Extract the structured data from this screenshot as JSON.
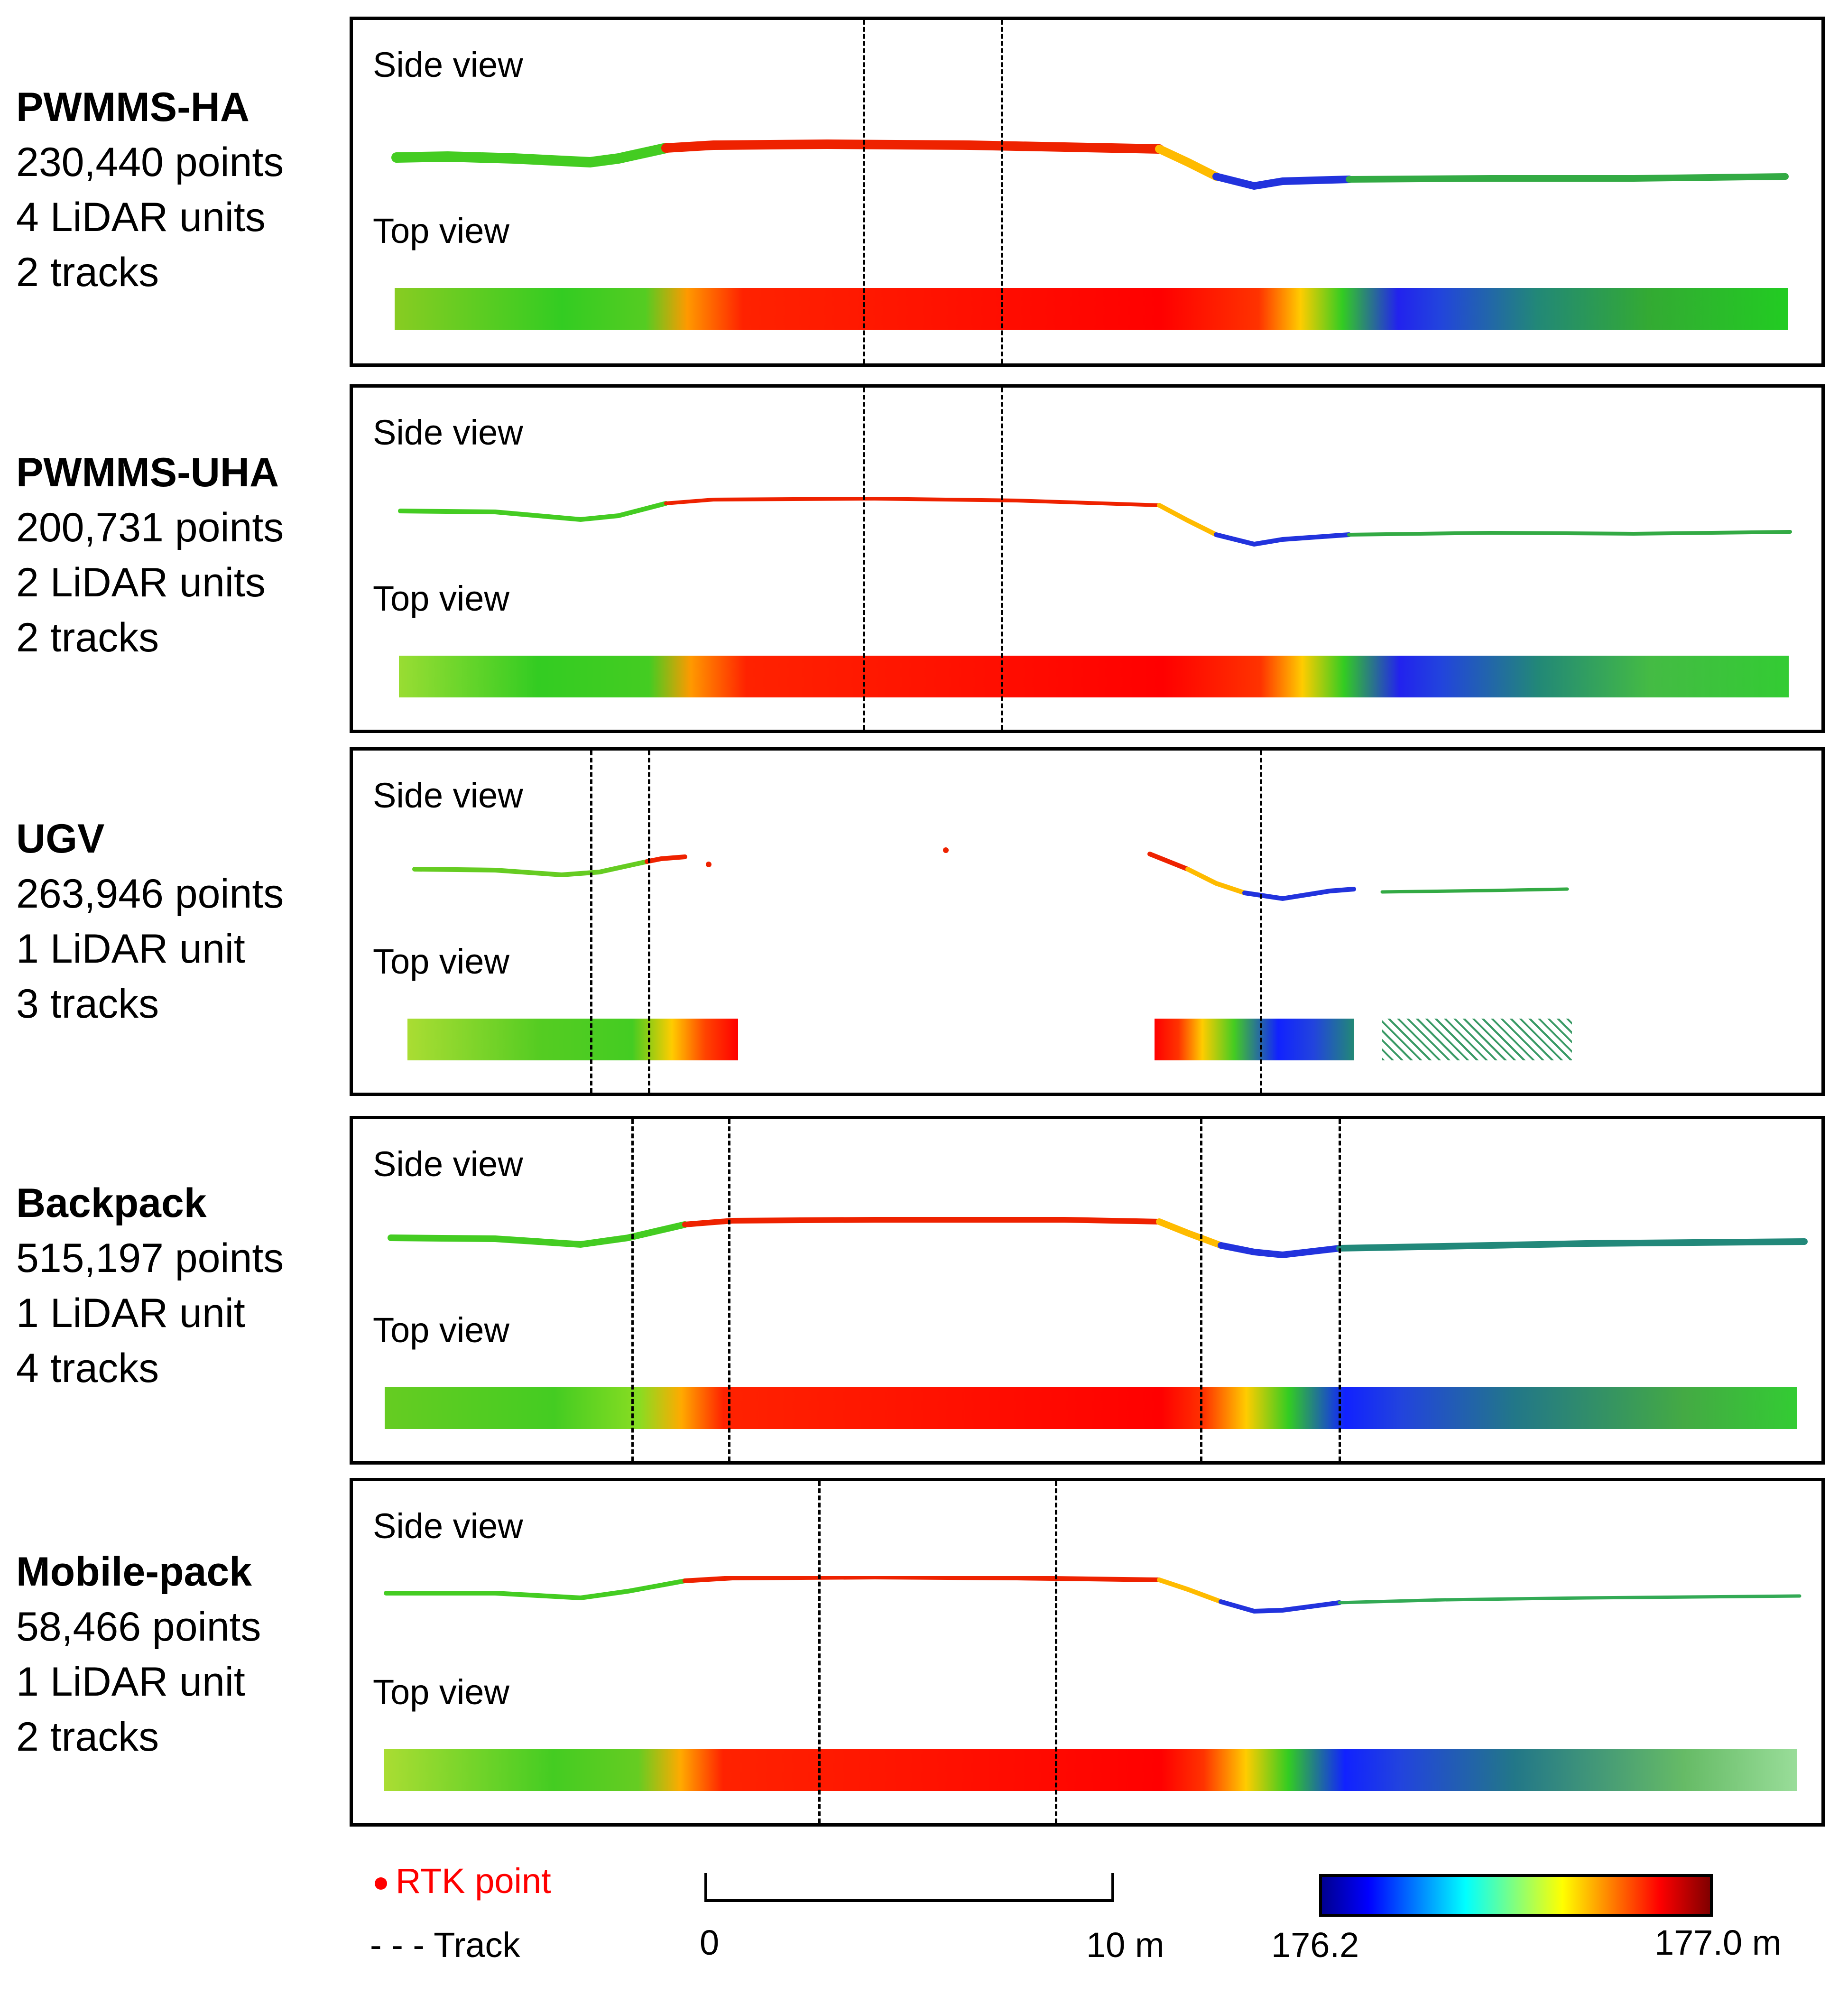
{
  "figure": "LiDAR point cloud side and top views of a road segment from five mobile mapping systems",
  "systems": [
    {
      "name": "PWMMS-HA",
      "points": "230,440 points",
      "lidar_units": "4 LiDAR units",
      "tracks": "2 tracks",
      "side_view_label": "Side view",
      "top_view_label": "Top view",
      "coverage": "full",
      "track_positions_m": [
        4.0,
        7.4
      ]
    },
    {
      "name": "PWMMS-UHA",
      "points": "200,731 points",
      "lidar_units": "2 LiDAR units",
      "tracks": "2 tracks",
      "side_view_label": "Side view",
      "top_view_label": "Top view",
      "coverage": "full",
      "track_positions_m": [
        4.0,
        7.4
      ]
    },
    {
      "name": "UGV",
      "points": "263,946 points",
      "lidar_units": "1 LiDAR unit",
      "tracks": "3 tracks",
      "side_view_label": "Side view",
      "top_view_label": "Top view",
      "coverage": "partial",
      "track_positions_m": [
        -2.9,
        -1.4,
        13.5
      ]
    },
    {
      "name": "Backpack",
      "points": "515,197 points",
      "lidar_units": "1 LiDAR unit",
      "tracks": "4 tracks",
      "side_view_label": "Side view",
      "top_view_label": "Top view",
      "coverage": "full",
      "track_positions_m": [
        -1.9,
        0.5,
        12.2,
        15.6
      ]
    },
    {
      "name": "Mobile-pack",
      "points": "58,466 points",
      "lidar_units": "1 LiDAR unit",
      "tracks": "2 tracks",
      "side_view_label": "Side view",
      "top_view_label": "Top view",
      "coverage": "full",
      "track_positions_m": [
        2.7,
        8.6
      ]
    }
  ],
  "legend": {
    "rtk_label": "RTK point",
    "track_label": "Track",
    "track_symbol": "- - -",
    "scale_start": "0",
    "scale_end": "10 m",
    "colorbar_min": "176.2",
    "colorbar_max": "177.0 m"
  },
  "colors": {
    "rtk": "#ff0000",
    "colormap": [
      "#00008f",
      "#0000ff",
      "#00ffff",
      "#ffff00",
      "#ff0000",
      "#800000"
    ]
  }
}
